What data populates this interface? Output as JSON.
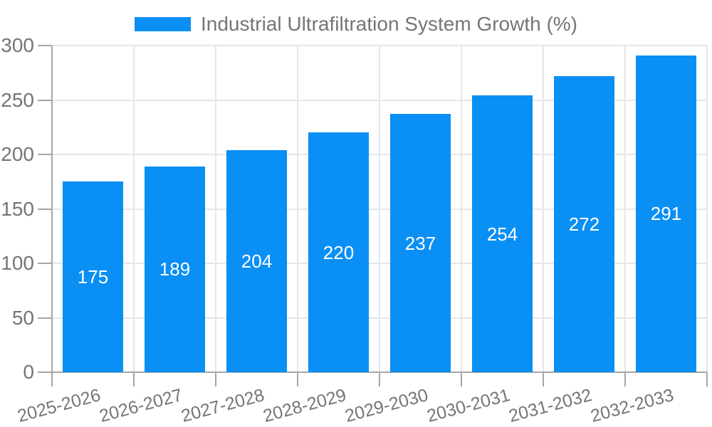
{
  "chart_data": {
    "type": "bar",
    "categories": [
      "2025-2026",
      "2026-2027",
      "2027-2028",
      "2028-2029",
      "2029-2030",
      "2030-2031",
      "2031-2032",
      "2032-2033"
    ],
    "series": [
      {
        "name": "Industrial Ultrafiltration System Growth (%)",
        "values": [
          175,
          189,
          204,
          220,
          237,
          254,
          272,
          291
        ],
        "color": "#0A8FF4"
      }
    ],
    "value_labels_shown": true,
    "xlabel": "",
    "ylabel": "",
    "ylim": [
      0,
      300
    ],
    "yticks": [
      0,
      50,
      100,
      150,
      200,
      250,
      300
    ],
    "grid": true,
    "legend_position": "top-center",
    "x_tick_rotation_deg": -15,
    "colors": {
      "bar": "#0A8FF4",
      "value_label": "#FFFFFF",
      "axis_text": "#757575",
      "gridline": "#E6E6E6",
      "axis_line": "#A6A6A6",
      "background": "#FFFFFF"
    }
  }
}
